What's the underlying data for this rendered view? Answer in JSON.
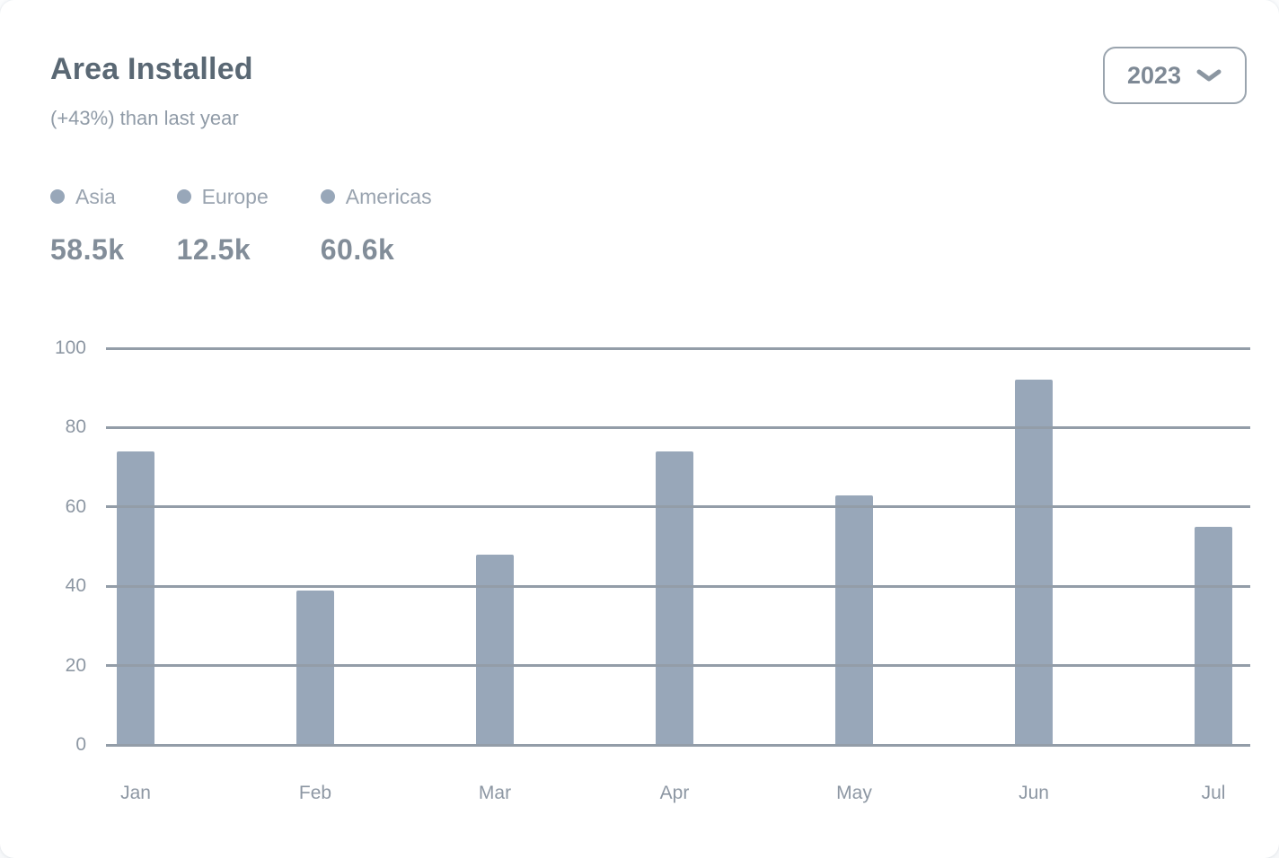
{
  "card": {
    "title": "Area Installed",
    "subtitle": "(+43%) than last year",
    "year_select": {
      "value": "2023",
      "icon": "chevron-down-icon"
    }
  },
  "legend": {
    "items": [
      {
        "label": "Asia",
        "value": "58.5k"
      },
      {
        "label": "Europe",
        "value": "12.5k"
      },
      {
        "label": "Americas",
        "value": "60.6k"
      }
    ]
  },
  "chart_data": {
    "type": "bar",
    "title": "Area Installed",
    "categories": [
      "Jan",
      "Feb",
      "Mar",
      "Apr",
      "May",
      "Jun",
      "Jul"
    ],
    "values": [
      74,
      39,
      48,
      74,
      63,
      92,
      55
    ],
    "xlabel": "",
    "ylabel": "",
    "ylim": [
      0,
      100
    ],
    "yticks": [
      0,
      20,
      40,
      60,
      80,
      100
    ],
    "grid": true,
    "legend_position": "top-left",
    "bar_color": "#98a7b9",
    "grid_color": "#939da8",
    "tick_label_color": "#8d97a3"
  },
  "colors": {
    "card_background": "#ffffff",
    "title": "#5a6874",
    "subtitle": "#909ba7",
    "legend_label": "#99a3af",
    "legend_value": "#828d99",
    "button_border": "#9aa4ae",
    "button_text": "#7e8995"
  }
}
